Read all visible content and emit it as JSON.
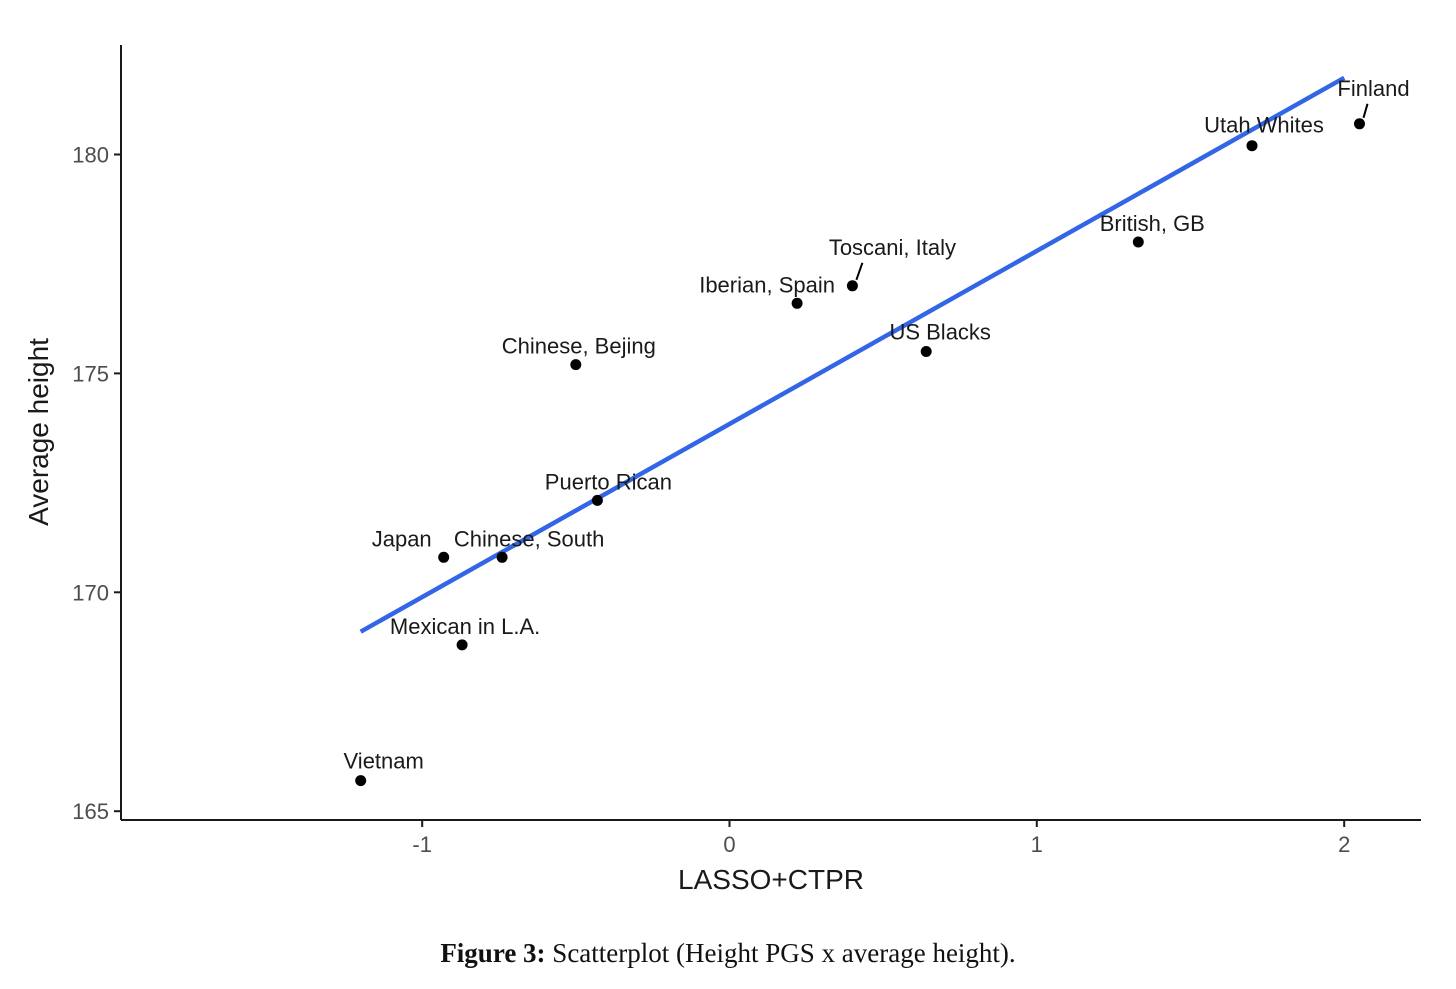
{
  "figure": {
    "caption_label": "Figure 3:",
    "caption_text": " Scatterplot (Height PGS x average height)."
  },
  "colors": {
    "fit_line": "#3366e6",
    "point": "#000000",
    "axis": "#1a1a1a"
  },
  "chart_data": {
    "type": "scatter",
    "title": "",
    "xlabel": "LASSO+CTPR",
    "ylabel": "Average height",
    "xlim": [
      -1.98,
      2.25
    ],
    "ylim": [
      164.8,
      182.5
    ],
    "xticks": [
      -1,
      0,
      1,
      2
    ],
    "yticks": [
      165,
      170,
      175,
      180
    ],
    "grid": false,
    "points": [
      {
        "label": "Finland",
        "x": 2.05,
        "y": 180.7
      },
      {
        "label": "Utah Whites",
        "x": 1.7,
        "y": 180.2
      },
      {
        "label": "British, GB",
        "x": 1.33,
        "y": 178.0
      },
      {
        "label": "Toscani, Italy",
        "x": 0.4,
        "y": 177.0
      },
      {
        "label": "Iberian, Spain",
        "x": 0.22,
        "y": 176.6
      },
      {
        "label": "US Blacks",
        "x": 0.64,
        "y": 175.5
      },
      {
        "label": "Chinese, Bejing",
        "x": -0.5,
        "y": 175.2
      },
      {
        "label": "Puerto Rican",
        "x": -0.43,
        "y": 172.1
      },
      {
        "label": "Japan",
        "x": -0.93,
        "y": 170.8
      },
      {
        "label": "Chinese, South",
        "x": -0.74,
        "y": 170.8
      },
      {
        "label": "Mexican in L.A.",
        "x": -0.87,
        "y": 168.8
      },
      {
        "label": "Vietnam",
        "x": -1.2,
        "y": 165.7
      }
    ],
    "fit_line": {
      "x": [
        -1.2,
        2.0
      ],
      "y": [
        169.1,
        181.75
      ]
    }
  }
}
